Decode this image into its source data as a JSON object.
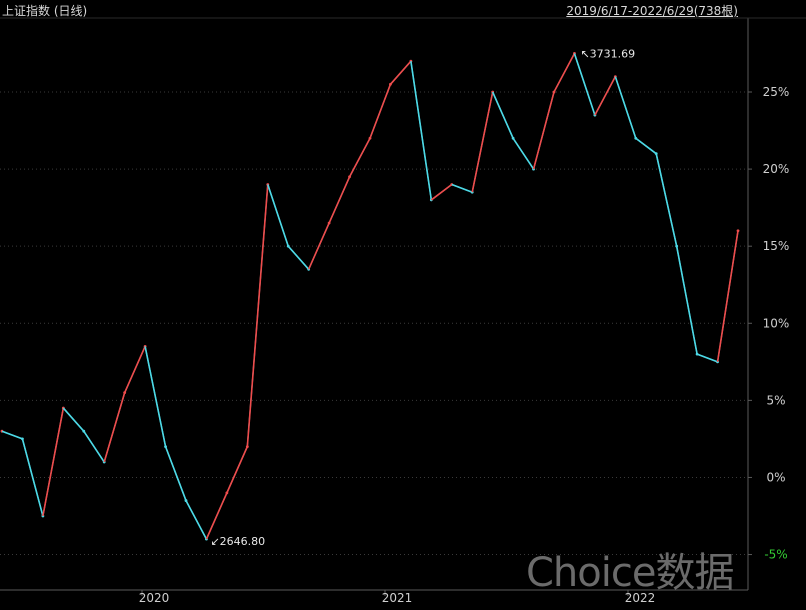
{
  "header": {
    "title": "上证指数 (日线)",
    "range": "2019/6/17-2022/6/29(738根)"
  },
  "watermark": "Choice数据",
  "colors": {
    "up": "#ef4b4b",
    "down": "#4dd9e6",
    "grid": "#3a3a3a",
    "axis_text": "#cfcfcf",
    "negative_tick": "#33cc33"
  },
  "chart_data": {
    "type": "line",
    "title": "上证指数 (日线)",
    "xlabel": "",
    "ylabel": "",
    "x_ticks": [
      "2020",
      "2021",
      "2022"
    ],
    "y_ticks": [
      "-5%",
      "0%",
      "5%",
      "10%",
      "15%",
      "20%",
      "25%"
    ],
    "ylim": [
      -7.3,
      29.8
    ],
    "grid": true,
    "annotations": [
      {
        "label": "3731.69",
        "kind": "high"
      },
      {
        "label": "2646.80",
        "kind": "low"
      }
    ],
    "series": [
      {
        "x": [
          "2019-06",
          "2019-07",
          "2019-08",
          "2019-09",
          "2019-10",
          "2019-11",
          "2019-12",
          "2020-01",
          "2020-02",
          "2020-03",
          "2020-04",
          "2020-05",
          "2020-06",
          "2020-07",
          "2020-08",
          "2020-09",
          "2020-10",
          "2020-11",
          "2020-12",
          "2021-01",
          "2021-02",
          "2021-03",
          "2021-04",
          "2021-05",
          "2021-06",
          "2021-07",
          "2021-08",
          "2021-09",
          "2021-10",
          "2021-11",
          "2021-12",
          "2022-01",
          "2022-02",
          "2022-03",
          "2022-04",
          "2022-05",
          "2022-06"
        ],
        "values": [
          3.0,
          2.5,
          -2.5,
          4.5,
          3.0,
          1.0,
          5.5,
          8.5,
          2.0,
          -1.5,
          -4.0,
          -1.0,
          2.0,
          19.0,
          15.0,
          13.5,
          16.5,
          19.5,
          22.0,
          25.5,
          27.0,
          18.0,
          19.0,
          18.5,
          25.0,
          22.0,
          20.0,
          25.0,
          27.5,
          23.5,
          26.0,
          22.0,
          21.0,
          15.0,
          8.0,
          7.5,
          16.0
        ]
      }
    ]
  }
}
